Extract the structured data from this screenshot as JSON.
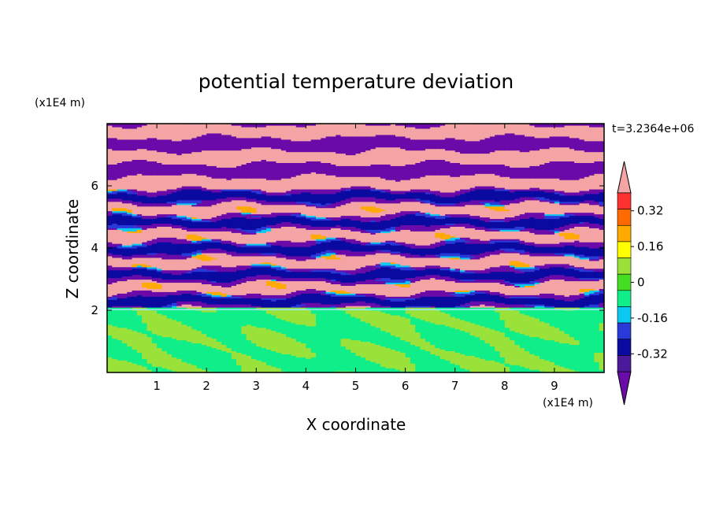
{
  "chart_data": {
    "type": "heatmap",
    "title": "potential temperature deviation",
    "xlabel": "X coordinate",
    "ylabel": "Z coordinate",
    "x_unit": "(x1E4 m)",
    "y_unit": "(x1E4 m)",
    "time_label": "t=3.2364e+06",
    "xlim": [
      0,
      10
    ],
    "ylim": [
      0,
      8
    ],
    "x_ticks": [
      1,
      2,
      3,
      4,
      5,
      6,
      7,
      8,
      9
    ],
    "y_ticks": [
      2,
      4,
      6
    ],
    "colorbar": {
      "levels": [
        -0.48,
        -0.4,
        -0.32,
        -0.24,
        -0.16,
        -0.08,
        0,
        0.08,
        0.16,
        0.24,
        0.32,
        0.4,
        0.48
      ],
      "colors": [
        "#6a0aa8",
        "#4a1a9a",
        "#0a0aa0",
        "#2a3ad8",
        "#0ac8f0",
        "#10ee8a",
        "#44dd22",
        "#9ae23a",
        "#ffff00",
        "#ffaa00",
        "#ff6a00",
        "#ff3030",
        "#f4a4a4"
      ],
      "tick_labels": [
        "0.32",
        "0.16",
        "0",
        "-0.16",
        "-0.32"
      ],
      "tick_values": [
        0.32,
        0.16,
        0,
        -0.16,
        -0.32
      ]
    },
    "layers": [
      {
        "z": [
          0,
          2.1
        ],
        "description": "",
        "dominant": [
          "#10ee8a",
          "#9ae23a"
        ]
      },
      {
        "z": [
          2.1,
          5.9
        ],
        "description": "",
        "dominant": [
          "#f4a4a4",
          "#6a0aa8",
          "#0ac8f0",
          "#0a0aa0"
        ]
      },
      {
        "z": [
          5.9,
          8
        ],
        "description": "",
        "dominant": [
          "#f4a4a4",
          "#6a0aa8"
        ]
      }
    ]
  }
}
